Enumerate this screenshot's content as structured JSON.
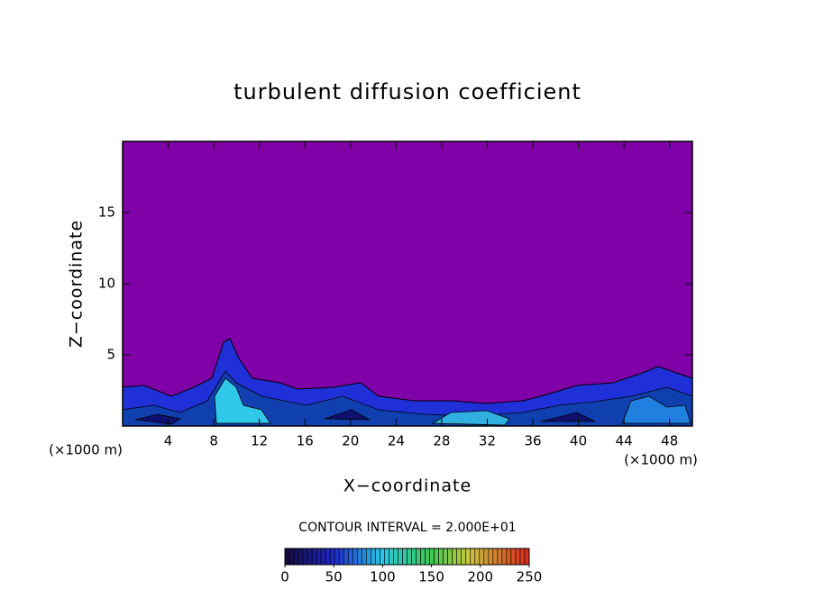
{
  "chart_data": {
    "type": "contour",
    "title": "turbulent diffusion coefficient",
    "x_label": "X−coordinate",
    "y_label": "Z−coordinate",
    "x_unit_label": "(×1000 m)",
    "y_unit_label": "(×1000 m)",
    "contour_interval_label": "CONTOUR INTERVAL = 2.000E+01",
    "xlim": [
      0,
      50
    ],
    "xticks": [
      4,
      8,
      12,
      16,
      20,
      24,
      28,
      32,
      36,
      40,
      44,
      48
    ],
    "ylim": [
      0,
      20
    ],
    "yticks": [
      5,
      10,
      15
    ],
    "background_color": "#8000a8",
    "colorbar": {
      "lim": [
        0,
        250
      ],
      "ticks": [
        0,
        50,
        100,
        150,
        200,
        250
      ]
    }
  }
}
